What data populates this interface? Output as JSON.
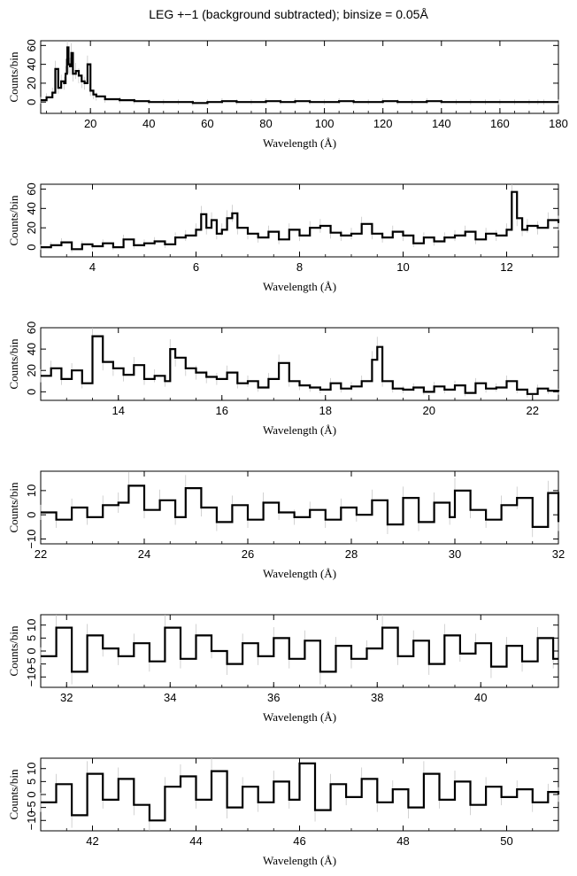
{
  "title": "LEG +−1 (background subtracted); binsize = 0.05Å",
  "chart_data": [
    {
      "type": "line",
      "step": true,
      "error_bars": true,
      "xlabel": "Wavelength (Å)",
      "ylabel": "Counts/bin",
      "xlim": [
        3,
        180
      ],
      "ylim": [
        -12,
        65
      ],
      "xticks": [
        20,
        40,
        60,
        80,
        100,
        120,
        140,
        160,
        180
      ],
      "yticks": [
        0,
        20,
        40,
        60
      ],
      "x": [
        3,
        5,
        7,
        8,
        9,
        10,
        11,
        11.5,
        12,
        12.1,
        12.5,
        13,
        13.5,
        14,
        15,
        16,
        17,
        18,
        19,
        20,
        21,
        22,
        25,
        30,
        35,
        40,
        45,
        50,
        55,
        60,
        65,
        70,
        75,
        80,
        85,
        90,
        95,
        100,
        105,
        110,
        115,
        120,
        125,
        130,
        135,
        140,
        145,
        150,
        155,
        160,
        165,
        170,
        173,
        175,
        180
      ],
      "y": [
        2,
        5,
        10,
        35,
        15,
        22,
        20,
        30,
        45,
        58,
        40,
        38,
        52,
        30,
        33,
        28,
        22,
        20,
        40,
        12,
        8,
        6,
        3,
        2,
        1,
        0,
        0,
        0,
        -1,
        0,
        1,
        0,
        0,
        1,
        0,
        1,
        0,
        0,
        1,
        0,
        0,
        1,
        0,
        0,
        1,
        0,
        0,
        0,
        0,
        0,
        0,
        0,
        0,
        0,
        0
      ]
    },
    {
      "type": "line",
      "step": true,
      "error_bars": true,
      "xlabel": "Wavelength (Å)",
      "ylabel": "Counts/bin",
      "xlim": [
        3,
        13
      ],
      "ylim": [
        -10,
        65
      ],
      "xticks": [
        4,
        6,
        8,
        10,
        12
      ],
      "yticks": [
        0,
        20,
        40,
        60
      ],
      "x": [
        3,
        3.2,
        3.4,
        3.6,
        3.8,
        4,
        4.2,
        4.4,
        4.6,
        4.8,
        5,
        5.2,
        5.4,
        5.6,
        5.8,
        6,
        6.1,
        6.2,
        6.3,
        6.4,
        6.5,
        6.6,
        6.7,
        6.8,
        7,
        7.2,
        7.4,
        7.6,
        7.8,
        8,
        8.2,
        8.4,
        8.6,
        8.8,
        9,
        9.2,
        9.4,
        9.6,
        9.8,
        10,
        10.2,
        10.4,
        10.6,
        10.8,
        11,
        11.2,
        11.4,
        11.6,
        11.8,
        12,
        12.1,
        12.2,
        12.3,
        12.4,
        12.6,
        12.8,
        13
      ],
      "y": [
        0,
        2,
        5,
        -2,
        3,
        1,
        4,
        0,
        8,
        2,
        4,
        6,
        3,
        10,
        12,
        18,
        34,
        20,
        28,
        14,
        18,
        30,
        35,
        20,
        14,
        10,
        16,
        8,
        18,
        12,
        20,
        22,
        15,
        12,
        14,
        24,
        14,
        10,
        16,
        12,
        4,
        10,
        6,
        10,
        12,
        16,
        8,
        14,
        12,
        18,
        57,
        30,
        18,
        22,
        20,
        28,
        25
      ]
    },
    {
      "type": "line",
      "step": true,
      "error_bars": true,
      "xlabel": "Wavelength (Å)",
      "ylabel": "Counts/bin",
      "xlim": [
        12.5,
        22.5
      ],
      "ylim": [
        -8,
        60
      ],
      "xticks": [
        14,
        16,
        18,
        20,
        22
      ],
      "yticks": [
        0,
        20,
        40,
        60
      ],
      "x": [
        12.5,
        12.7,
        12.9,
        13.1,
        13.3,
        13.5,
        13.7,
        13.9,
        14.1,
        14.3,
        14.5,
        14.7,
        14.9,
        15,
        15.1,
        15.3,
        15.5,
        15.7,
        15.9,
        16.1,
        16.3,
        16.5,
        16.7,
        16.9,
        17.1,
        17.3,
        17.5,
        17.7,
        17.9,
        18.1,
        18.3,
        18.5,
        18.7,
        18.9,
        19,
        19.1,
        19.3,
        19.5,
        19.7,
        19.9,
        20.1,
        20.3,
        20.5,
        20.7,
        20.9,
        21.1,
        21.3,
        21.5,
        21.7,
        21.9,
        22.1,
        22.3,
        22.5
      ],
      "y": [
        15,
        22,
        12,
        20,
        8,
        52,
        28,
        22,
        16,
        25,
        12,
        15,
        10,
        40,
        32,
        22,
        18,
        14,
        12,
        18,
        8,
        10,
        4,
        12,
        27,
        10,
        6,
        4,
        2,
        8,
        3,
        5,
        10,
        30,
        42,
        10,
        3,
        2,
        4,
        0,
        5,
        2,
        6,
        -1,
        8,
        3,
        4,
        10,
        2,
        -2,
        3,
        1,
        0
      ]
    },
    {
      "type": "line",
      "step": true,
      "error_bars": true,
      "xlabel": "Wavelength (Å)",
      "ylabel": "Counts/bin",
      "xlim": [
        22,
        32
      ],
      "ylim": [
        -12,
        18
      ],
      "xticks": [
        22,
        24,
        26,
        28,
        30,
        32
      ],
      "yticks": [
        -10,
        0,
        10
      ],
      "x": [
        22,
        22.3,
        22.6,
        22.9,
        23.2,
        23.5,
        23.7,
        24,
        24.3,
        24.6,
        24.8,
        25.1,
        25.4,
        25.7,
        26,
        26.3,
        26.6,
        26.9,
        27.2,
        27.5,
        27.8,
        28.1,
        28.4,
        28.7,
        29,
        29.3,
        29.6,
        29.9,
        30,
        30.3,
        30.6,
        30.9,
        31.2,
        31.5,
        31.8,
        32
      ],
      "y": [
        1,
        -2,
        3,
        -1,
        4,
        5,
        12,
        2,
        6,
        -1,
        11,
        3,
        -3,
        4,
        -2,
        5,
        1,
        -1,
        2,
        -2,
        3,
        0,
        6,
        -4,
        7,
        -3,
        5,
        -1,
        10,
        2,
        -2,
        4,
        7,
        -5,
        9,
        -3
      ]
    },
    {
      "type": "line",
      "step": true,
      "error_bars": true,
      "xlabel": "Wavelength (Å)",
      "ylabel": "Counts/bin",
      "xlim": [
        31.5,
        41.5
      ],
      "ylim": [
        -14,
        14
      ],
      "xticks": [
        32,
        34,
        36,
        38,
        40
      ],
      "yticks": [
        -10,
        -5,
        0,
        5,
        10
      ],
      "x": [
        31.5,
        31.8,
        32.1,
        32.4,
        32.7,
        33,
        33.3,
        33.6,
        33.9,
        34.2,
        34.5,
        34.8,
        35.1,
        35.4,
        35.7,
        36,
        36.3,
        36.6,
        36.9,
        37.2,
        37.5,
        37.8,
        38.1,
        38.4,
        38.7,
        39,
        39.3,
        39.6,
        39.9,
        40.2,
        40.5,
        40.8,
        41.1,
        41.4
      ],
      "y": [
        -2,
        9,
        -8,
        6,
        1,
        -2,
        3,
        -4,
        9,
        -3,
        6,
        0,
        -5,
        3,
        -2,
        5,
        -3,
        4,
        -8,
        2,
        -3,
        1,
        9,
        -2,
        4,
        -5,
        6,
        -1,
        3,
        -6,
        2,
        -4,
        5,
        -3
      ]
    },
    {
      "type": "line",
      "step": true,
      "error_bars": true,
      "xlabel": "Wavelength (Å)",
      "ylabel": "Counts/bin",
      "xlim": [
        41,
        51
      ],
      "ylim": [
        -14,
        14
      ],
      "xticks": [
        42,
        44,
        46,
        48,
        50
      ],
      "yticks": [
        -10,
        -5,
        0,
        5,
        10
      ],
      "x": [
        41,
        41.3,
        41.6,
        41.9,
        42.2,
        42.5,
        42.8,
        43.1,
        43.4,
        43.7,
        44,
        44.3,
        44.6,
        44.9,
        45.2,
        45.5,
        45.8,
        46,
        46.3,
        46.6,
        46.9,
        47.2,
        47.5,
        47.8,
        48.1,
        48.4,
        48.7,
        49,
        49.3,
        49.6,
        49.9,
        50.2,
        50.5,
        50.8,
        51
      ],
      "y": [
        -3,
        4,
        -8,
        8,
        -2,
        6,
        -4,
        -10,
        3,
        7,
        -2,
        9,
        -5,
        3,
        -3,
        5,
        -2,
        12,
        -6,
        4,
        -1,
        6,
        -3,
        2,
        -5,
        8,
        -2,
        5,
        -4,
        3,
        -1,
        2,
        -3,
        1,
        0
      ]
    }
  ]
}
